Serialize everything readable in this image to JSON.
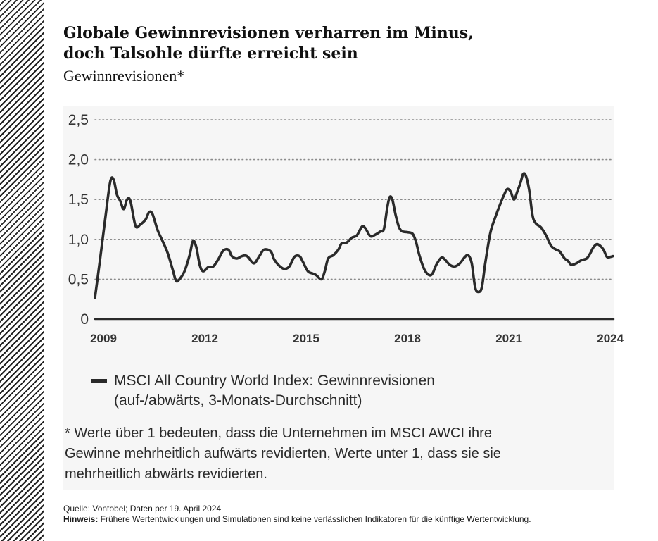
{
  "title_lines": [
    "Globale Gewinnrevisionen verharren im Minus,",
    "doch Talsohle dürfte erreicht sein"
  ],
  "subtitle": "Gewinnrevisionen*",
  "legend": {
    "line1": "MSCI All Country World Index: Gewinnrevisionen",
    "line2": "(auf-/abwärts, 3-Monats-Durchschnitt)"
  },
  "footnote_lines": [
    "* Werte über 1 bedeuten, dass die Unternehmen im MSCI AWCI ihre",
    "Gewinne mehrheitlich aufwärts revidierten, Werte unter 1, dass sie sie",
    "mehrheitlich abwärts revidierten."
  ],
  "source": {
    "line1": "Quelle: Vontobel; Daten per 19. April 2024",
    "hinweis_label": "Hinweis:",
    "hinweis_text": " Frühere Wertentwicklungen und Simulationen sind keine verlässlichen Indikatoren für die künftige Wertentwicklung."
  },
  "chart_data": {
    "type": "line",
    "grid": "horizontal dotted",
    "xlim": [
      2009.0,
      2024.33
    ],
    "ylim": [
      0,
      2.5
    ],
    "x_ticks": [
      {
        "value": 2009.25,
        "label": "2009"
      },
      {
        "value": 2012.25,
        "label": "2012"
      },
      {
        "value": 2015.25,
        "label": "2015"
      },
      {
        "value": 2018.25,
        "label": "2018"
      },
      {
        "value": 2021.25,
        "label": "2021"
      },
      {
        "value": 2024.25,
        "label": "2024"
      }
    ],
    "y_ticks": [
      {
        "value": 0,
        "label": "0"
      },
      {
        "value": 0.5,
        "label": "0,5"
      },
      {
        "value": 1.0,
        "label": "1,0"
      },
      {
        "value": 1.5,
        "label": "1,5"
      },
      {
        "value": 2.0,
        "label": "2,0"
      },
      {
        "value": 2.5,
        "label": "2,5"
      }
    ],
    "series": [
      {
        "name": "MSCI All Country World Index: Gewinnrevisionen",
        "color": "#2a2a2a",
        "points": [
          [
            2009.0,
            0.27
          ],
          [
            2009.15,
            0.75
          ],
          [
            2009.3,
            1.25
          ],
          [
            2009.45,
            1.72
          ],
          [
            2009.55,
            1.75
          ],
          [
            2009.65,
            1.56
          ],
          [
            2009.75,
            1.48
          ],
          [
            2009.85,
            1.38
          ],
          [
            2009.95,
            1.5
          ],
          [
            2010.05,
            1.48
          ],
          [
            2010.2,
            1.17
          ],
          [
            2010.35,
            1.19
          ],
          [
            2010.5,
            1.25
          ],
          [
            2010.6,
            1.34
          ],
          [
            2010.7,
            1.32
          ],
          [
            2010.85,
            1.12
          ],
          [
            2011.0,
            0.98
          ],
          [
            2011.15,
            0.83
          ],
          [
            2011.3,
            0.62
          ],
          [
            2011.4,
            0.48
          ],
          [
            2011.5,
            0.5
          ],
          [
            2011.65,
            0.6
          ],
          [
            2011.8,
            0.8
          ],
          [
            2011.9,
            0.98
          ],
          [
            2012.0,
            0.9
          ],
          [
            2012.1,
            0.68
          ],
          [
            2012.2,
            0.6
          ],
          [
            2012.35,
            0.65
          ],
          [
            2012.5,
            0.66
          ],
          [
            2012.65,
            0.75
          ],
          [
            2012.8,
            0.86
          ],
          [
            2012.95,
            0.87
          ],
          [
            2013.05,
            0.79
          ],
          [
            2013.2,
            0.76
          ],
          [
            2013.35,
            0.79
          ],
          [
            2013.5,
            0.79
          ],
          [
            2013.7,
            0.7
          ],
          [
            2013.85,
            0.78
          ],
          [
            2014.0,
            0.87
          ],
          [
            2014.2,
            0.85
          ],
          [
            2014.3,
            0.75
          ],
          [
            2014.45,
            0.67
          ],
          [
            2014.6,
            0.63
          ],
          [
            2014.75,
            0.66
          ],
          [
            2014.9,
            0.78
          ],
          [
            2015.05,
            0.79
          ],
          [
            2015.15,
            0.72
          ],
          [
            2015.3,
            0.6
          ],
          [
            2015.45,
            0.57
          ],
          [
            2015.55,
            0.55
          ],
          [
            2015.7,
            0.5
          ],
          [
            2015.8,
            0.6
          ],
          [
            2015.9,
            0.76
          ],
          [
            2016.05,
            0.8
          ],
          [
            2016.2,
            0.87
          ],
          [
            2016.3,
            0.95
          ],
          [
            2016.45,
            0.96
          ],
          [
            2016.6,
            1.02
          ],
          [
            2016.75,
            1.05
          ],
          [
            2016.9,
            1.16
          ],
          [
            2017.0,
            1.14
          ],
          [
            2017.15,
            1.04
          ],
          [
            2017.3,
            1.06
          ],
          [
            2017.45,
            1.1
          ],
          [
            2017.55,
            1.13
          ],
          [
            2017.65,
            1.4
          ],
          [
            2017.72,
            1.53
          ],
          [
            2017.8,
            1.5
          ],
          [
            2017.9,
            1.3
          ],
          [
            2018.0,
            1.15
          ],
          [
            2018.1,
            1.1
          ],
          [
            2018.25,
            1.09
          ],
          [
            2018.4,
            1.07
          ],
          [
            2018.5,
            0.97
          ],
          [
            2018.6,
            0.8
          ],
          [
            2018.75,
            0.62
          ],
          [
            2018.9,
            0.55
          ],
          [
            2019.0,
            0.58
          ],
          [
            2019.1,
            0.68
          ],
          [
            2019.25,
            0.77
          ],
          [
            2019.35,
            0.75
          ],
          [
            2019.5,
            0.68
          ],
          [
            2019.65,
            0.66
          ],
          [
            2019.8,
            0.7
          ],
          [
            2019.95,
            0.78
          ],
          [
            2020.05,
            0.8
          ],
          [
            2020.15,
            0.7
          ],
          [
            2020.25,
            0.4
          ],
          [
            2020.35,
            0.34
          ],
          [
            2020.45,
            0.4
          ],
          [
            2020.55,
            0.7
          ],
          [
            2020.7,
            1.08
          ],
          [
            2020.85,
            1.28
          ],
          [
            2021.0,
            1.45
          ],
          [
            2021.1,
            1.55
          ],
          [
            2021.2,
            1.63
          ],
          [
            2021.3,
            1.6
          ],
          [
            2021.4,
            1.5
          ],
          [
            2021.5,
            1.6
          ],
          [
            2021.6,
            1.72
          ],
          [
            2021.67,
            1.82
          ],
          [
            2021.75,
            1.8
          ],
          [
            2021.85,
            1.62
          ],
          [
            2021.95,
            1.3
          ],
          [
            2022.05,
            1.2
          ],
          [
            2022.2,
            1.15
          ],
          [
            2022.35,
            1.05
          ],
          [
            2022.5,
            0.92
          ],
          [
            2022.65,
            0.87
          ],
          [
            2022.75,
            0.85
          ],
          [
            2022.9,
            0.76
          ],
          [
            2023.0,
            0.73
          ],
          [
            2023.1,
            0.68
          ],
          [
            2023.25,
            0.7
          ],
          [
            2023.4,
            0.74
          ],
          [
            2023.55,
            0.76
          ],
          [
            2023.65,
            0.82
          ],
          [
            2023.75,
            0.9
          ],
          [
            2023.85,
            0.94
          ],
          [
            2023.95,
            0.92
          ],
          [
            2024.05,
            0.87
          ],
          [
            2024.15,
            0.78
          ],
          [
            2024.25,
            0.78
          ],
          [
            2024.33,
            0.79
          ]
        ]
      }
    ]
  }
}
